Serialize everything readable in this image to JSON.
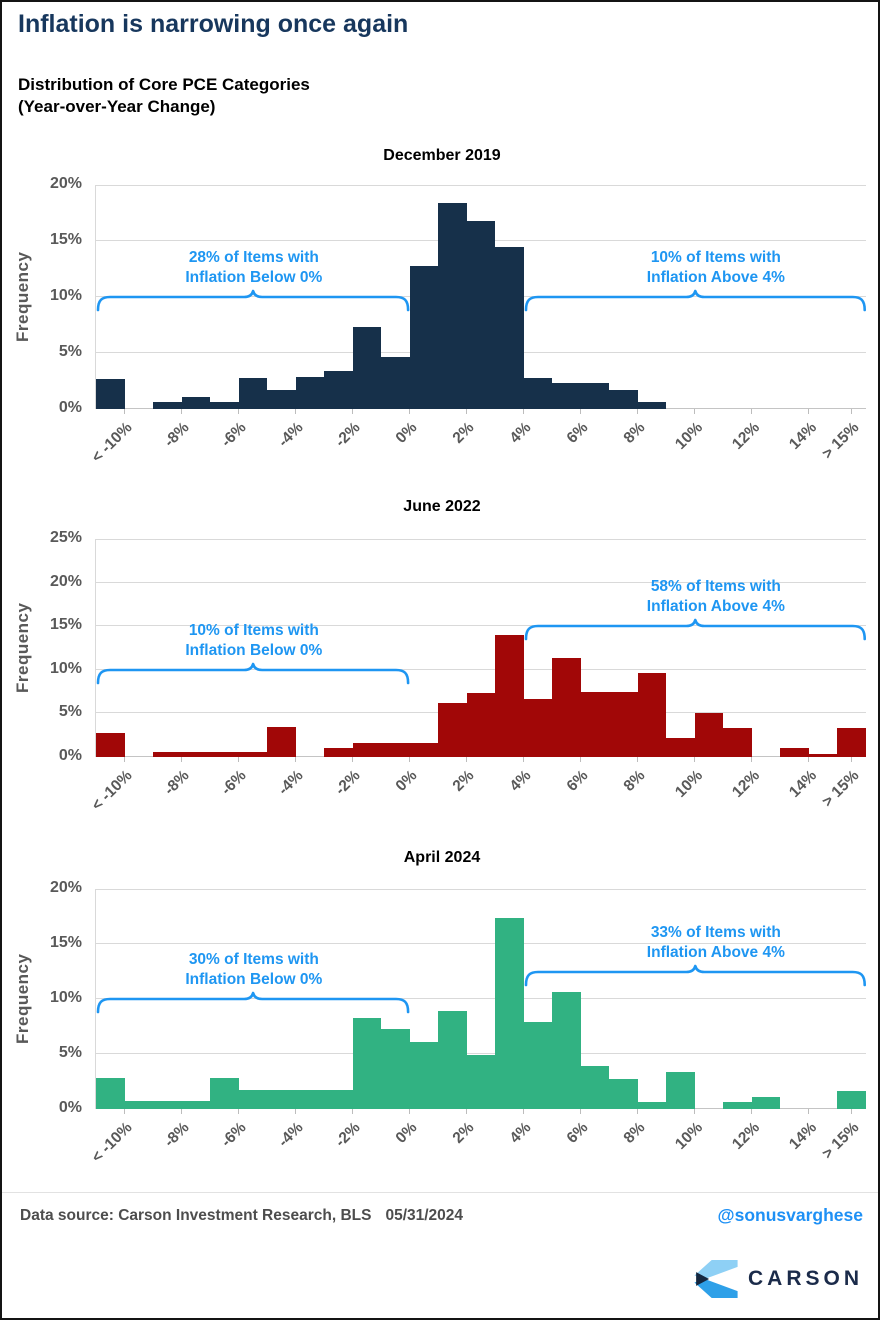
{
  "page": {
    "title": "Inflation is narrowing once again",
    "subtitle_line1": "Distribution of Core PCE Categories",
    "subtitle_line2": "(Year-over-Year Change)"
  },
  "colors": {
    "annotation_blue": "#1e96f2",
    "grid": "#d9d9d9",
    "axis_text": "#595959",
    "title_navy": "#17375d",
    "dec_bar": "#16304a",
    "jun_bar": "#a10707",
    "apr_bar": "#31b282"
  },
  "chart_data": [
    {
      "type": "bar",
      "title": "December 2019",
      "ylabel": "Frequency",
      "ylim": [
        0,
        20
      ],
      "y_tick_step": 5,
      "grid": true,
      "bar_color": "#16304a",
      "bins": {
        "start": -11,
        "end": 16,
        "width": 1
      },
      "x_tick_labels": [
        "< -10%",
        "-8%",
        "-6%",
        "-4%",
        "-2%",
        "0%",
        "2%",
        "4%",
        "6%",
        "8%",
        "10%",
        "12%",
        "14%",
        "> 15%"
      ],
      "x_tick_values": [
        -10,
        -8,
        -6,
        -4,
        -2,
        0,
        2,
        4,
        6,
        8,
        10,
        12,
        14,
        15.5
      ],
      "values": [
        2.7,
        0,
        0.6,
        1.1,
        0.6,
        2.8,
        1.7,
        2.9,
        3.4,
        7.3,
        4.6,
        12.8,
        18.4,
        16.8,
        14.5,
        2.8,
        2.3,
        2.3,
        1.7,
        0.6,
        0,
        0,
        0,
        0,
        0,
        0,
        0
      ],
      "annotations": [
        {
          "lines": [
            "28% of Items with",
            "Inflation Below 0%"
          ],
          "from": -11,
          "to": 0,
          "at_y": 10,
          "label_cx": 0.205
        },
        {
          "lines": [
            "10% of Items with",
            "Inflation Above 4%"
          ],
          "from": 4,
          "to": 16,
          "at_y": 10,
          "label_cx": 0.805
        }
      ]
    },
    {
      "type": "bar",
      "title": "June 2022",
      "ylabel": "Frequency",
      "ylim": [
        0,
        25
      ],
      "y_tick_step": 5,
      "grid": true,
      "bar_color": "#a10707",
      "bins": {
        "start": -11,
        "end": 16,
        "width": 1
      },
      "x_tick_labels": [
        "< -10%",
        "-8%",
        "-6%",
        "-4%",
        "-2%",
        "0%",
        "2%",
        "4%",
        "6%",
        "8%",
        "10%",
        "12%",
        "14%",
        "> 15%"
      ],
      "x_tick_values": [
        -10,
        -8,
        -6,
        -4,
        -2,
        0,
        2,
        4,
        6,
        8,
        10,
        12,
        14,
        15.5
      ],
      "values": [
        2.8,
        0,
        0.6,
        0.6,
        0.6,
        0.6,
        3.4,
        0,
        1.0,
        1.6,
        1.6,
        1.6,
        6.2,
        7.3,
        14.0,
        6.6,
        11.3,
        7.4,
        7.4,
        9.6,
        2.2,
        5.0,
        3.3,
        0,
        1.0,
        0.4,
        3.3
      ],
      "annotations": [
        {
          "lines": [
            "10% of Items with",
            "Inflation Below 0%"
          ],
          "from": -11,
          "to": 0,
          "at_y": 10,
          "label_cx": 0.205
        },
        {
          "lines": [
            "58% of Items with",
            "Inflation Above 4%"
          ],
          "from": 4,
          "to": 16,
          "at_y": 15,
          "label_cx": 0.805
        }
      ]
    },
    {
      "type": "bar",
      "title": "April 2024",
      "ylabel": "Frequency",
      "ylim": [
        0,
        20
      ],
      "y_tick_step": 5,
      "grid": true,
      "bar_color": "#31b282",
      "bins": {
        "start": -11,
        "end": 16,
        "width": 1
      },
      "x_tick_labels": [
        "< -10%",
        "-8%",
        "-6%",
        "-4%",
        "-2%",
        "0%",
        "2%",
        "4%",
        "6%",
        "8%",
        "10%",
        "12%",
        "14%",
        "> 15%"
      ],
      "x_tick_values": [
        -10,
        -8,
        -6,
        -4,
        -2,
        0,
        2,
        4,
        6,
        8,
        10,
        12,
        14,
        15.5
      ],
      "values": [
        2.8,
        0.7,
        0.7,
        0.7,
        2.8,
        1.7,
        1.7,
        1.7,
        1.7,
        8.3,
        7.3,
        6.1,
        8.9,
        4.9,
        17.4,
        7.9,
        10.6,
        3.9,
        2.7,
        0.6,
        3.4,
        0,
        0.6,
        1.1,
        0,
        0,
        1.6
      ],
      "annotations": [
        {
          "lines": [
            "30% of Items with",
            "Inflation Below 0%"
          ],
          "from": -11,
          "to": 0,
          "at_y": 10,
          "label_cx": 0.205
        },
        {
          "lines": [
            "33% of Items with",
            "Inflation Above 4%"
          ],
          "from": 4,
          "to": 16,
          "at_y": 12.5,
          "label_cx": 0.805
        }
      ]
    }
  ],
  "footer": {
    "source": "Data source: Carson Investment Research, BLS",
    "date": "05/31/2024",
    "handle": "@sonusvarghese",
    "brand": "CARSON"
  }
}
